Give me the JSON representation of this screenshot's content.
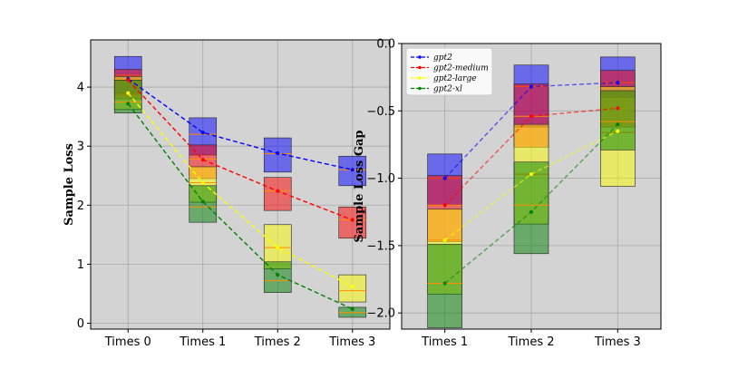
{
  "chart_data": [
    {
      "type": "box",
      "title": "",
      "xlabel": "",
      "ylabel": "Sample Loss",
      "categories": [
        "Times 0",
        "Times 1",
        "Times 2",
        "Times 3"
      ],
      "ylim": [
        -0.1,
        4.8
      ],
      "yticks": [
        0,
        1,
        2,
        3,
        4
      ],
      "grid": true,
      "series": [
        {
          "name": "gpt2",
          "color": "#0000ff",
          "line": [
            4.14,
            3.23,
            2.88,
            2.6
          ],
          "boxes": [
            [
              3.9,
              4.52,
              4.2
            ],
            [
              2.85,
              3.48,
              3.2
            ],
            [
              2.56,
              3.14,
              2.87
            ],
            [
              2.33,
              2.83,
              2.6
            ]
          ]
        },
        {
          "name": "gpt2-medium",
          "color": "#ff0000",
          "line": [
            4.12,
            2.77,
            2.24,
            1.75
          ],
          "boxes": [
            [
              3.8,
              4.3,
              4.12
            ],
            [
              2.45,
              3.02,
              2.78
            ],
            [
              1.91,
              2.47,
              2.24
            ],
            [
              1.44,
              1.97,
              1.75
            ]
          ]
        },
        {
          "name": "gpt2-large",
          "color": "#ffff00",
          "line": [
            3.9,
            2.38,
            1.28,
            0.62
          ],
          "boxes": [
            [
              3.62,
              4.18,
              3.88
            ],
            [
              2.05,
              2.65,
              2.38
            ],
            [
              0.92,
              1.67,
              1.28
            ],
            [
              0.36,
              0.82,
              0.55
            ]
          ]
        },
        {
          "name": "gpt2-xl",
          "color": "#008000",
          "line": [
            3.72,
            2.06,
            0.82,
            0.24
          ],
          "boxes": [
            [
              3.56,
              4.12,
              3.75
            ],
            [
              1.71,
              2.33,
              1.97
            ],
            [
              0.52,
              1.04,
              0.72
            ],
            [
              0.1,
              0.27,
              0.18
            ]
          ]
        }
      ]
    },
    {
      "type": "box",
      "title": "",
      "xlabel": "",
      "ylabel": "Sample Loss Gap",
      "categories": [
        "Times 1",
        "Times 2",
        "Times 3"
      ],
      "ylim": [
        -2.12,
        0.0
      ],
      "yticks": [
        -2.0,
        -1.5,
        -1.0,
        -0.5,
        0.0
      ],
      "ytick_labels": [
        "−2.0",
        "−1.5",
        "−1.0",
        "−0.5",
        "0.0"
      ],
      "grid": true,
      "legend": [
        "gpt2",
        "gpt2-medium",
        "gpt2-large",
        "gpt2-xl"
      ],
      "legend_position": "top-left",
      "series": [
        {
          "name": "gpt2",
          "color": "#0000ff",
          "line": [
            -1.0,
            -0.32,
            -0.29
          ],
          "boxes": [
            [
              -1.2,
              -0.82,
              -1.0
            ],
            [
              -0.62,
              -0.16,
              -0.32
            ],
            [
              -0.4,
              -0.1,
              -0.29
            ]
          ]
        },
        {
          "name": "gpt2-medium",
          "color": "#ff0000",
          "line": [
            -1.2,
            -0.54,
            -0.48
          ],
          "boxes": [
            [
              -1.47,
              -0.98,
              -1.2
            ],
            [
              -0.77,
              -0.3,
              -0.54
            ],
            [
              -0.62,
              -0.2,
              -0.48
            ]
          ]
        },
        {
          "name": "gpt2-large",
          "color": "#ffff00",
          "line": [
            -1.46,
            -0.97,
            -0.65
          ],
          "boxes": [
            [
              -1.86,
              -1.23,
              -1.46
            ],
            [
              -1.34,
              -0.6,
              -0.97
            ],
            [
              -1.06,
              -0.32,
              -0.66
            ]
          ]
        },
        {
          "name": "gpt2-xl",
          "color": "#008000",
          "line": [
            -1.78,
            -1.25,
            -0.6
          ],
          "boxes": [
            [
              -2.11,
              -1.49,
              -1.78
            ],
            [
              -1.56,
              -0.88,
              -1.2
            ],
            [
              -0.79,
              -0.35,
              -0.58
            ]
          ]
        }
      ]
    }
  ]
}
